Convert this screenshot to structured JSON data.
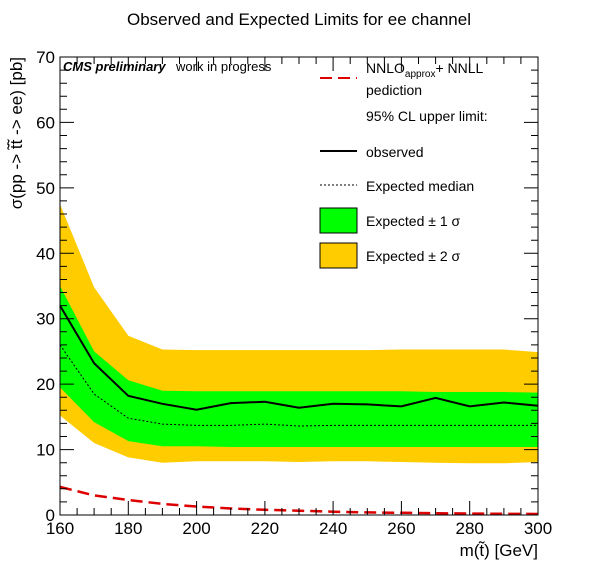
{
  "chart_data": {
    "type": "line",
    "title": "Observed and Expected Limits for ee channel",
    "xlabel": "m(t̃) [GeV]",
    "ylabel": "σ(pp -> t̃t̃ -> ee) [pb]",
    "xlim": [
      160,
      300
    ],
    "ylim": [
      0,
      70
    ],
    "xticks": [
      160,
      180,
      200,
      220,
      240,
      260,
      280,
      300
    ],
    "yticks": [
      0,
      10,
      20,
      30,
      40,
      50,
      60,
      70
    ],
    "x": [
      160,
      170,
      180,
      190,
      200,
      210,
      220,
      230,
      240,
      250,
      260,
      270,
      280,
      290,
      300
    ],
    "series": [
      {
        "name": "observed",
        "style": "solid",
        "color": "#000000",
        "values": [
          32.0,
          23.2,
          18.2,
          17.0,
          16.1,
          17.1,
          17.3,
          16.4,
          17.0,
          16.9,
          16.6,
          17.9,
          16.6,
          17.2,
          16.7
        ]
      },
      {
        "name": "Expected median",
        "style": "dotted",
        "color": "#000000",
        "values": [
          26.0,
          18.5,
          14.8,
          13.9,
          13.7,
          13.7,
          13.9,
          13.6,
          13.7,
          13.7,
          13.7,
          13.7,
          13.7,
          13.7,
          13.7
        ]
      },
      {
        "name": "NNLOapprox+ NNLL pediction",
        "style": "dashed",
        "color": "#dd0000",
        "values": [
          4.3,
          3.0,
          2.3,
          1.7,
          1.3,
          1.0,
          0.8,
          0.65,
          0.5,
          0.4,
          0.33,
          0.27,
          0.22,
          0.18,
          0.15
        ]
      }
    ],
    "bands": [
      {
        "name": "Expected ± 2 σ",
        "color": "#ffcc00",
        "upper": [
          47.5,
          34.8,
          27.4,
          25.3,
          25.2,
          25.2,
          25.2,
          25.2,
          25.2,
          25.2,
          25.3,
          25.3,
          25.3,
          25.3,
          24.9
        ],
        "lower": [
          15.2,
          11.0,
          8.8,
          8.0,
          8.2,
          8.2,
          8.2,
          8.1,
          8.2,
          8.2,
          8.1,
          8.0,
          7.9,
          7.9,
          8.1
        ]
      },
      {
        "name": "Expected ± 1 σ",
        "color": "#00ff00",
        "upper": [
          35.0,
          25.0,
          20.6,
          19.0,
          18.9,
          18.9,
          18.9,
          18.9,
          18.9,
          18.9,
          18.9,
          18.8,
          18.8,
          18.8,
          18.7
        ],
        "lower": [
          19.5,
          14.2,
          11.3,
          10.5,
          10.5,
          10.4,
          10.4,
          10.4,
          10.4,
          10.4,
          10.4,
          10.4,
          10.4,
          10.4,
          10.4
        ]
      }
    ],
    "legend": {
      "placement": "top-right",
      "nnlo_main": "NNLO",
      "nnlo_sub": "approx",
      "nnlo_rest": "+ NNLL",
      "nnlo_line2": "pediction",
      "header": "95% CL upper limit:",
      "observed": "observed",
      "expected_median": "Expected median",
      "one_sigma": "Expected ± 1 σ",
      "two_sigma": "Expected ± 2 σ"
    },
    "annotation_bold": "CMS preliminary",
    "annotation_rest": "work in progress",
    "grid": false
  }
}
